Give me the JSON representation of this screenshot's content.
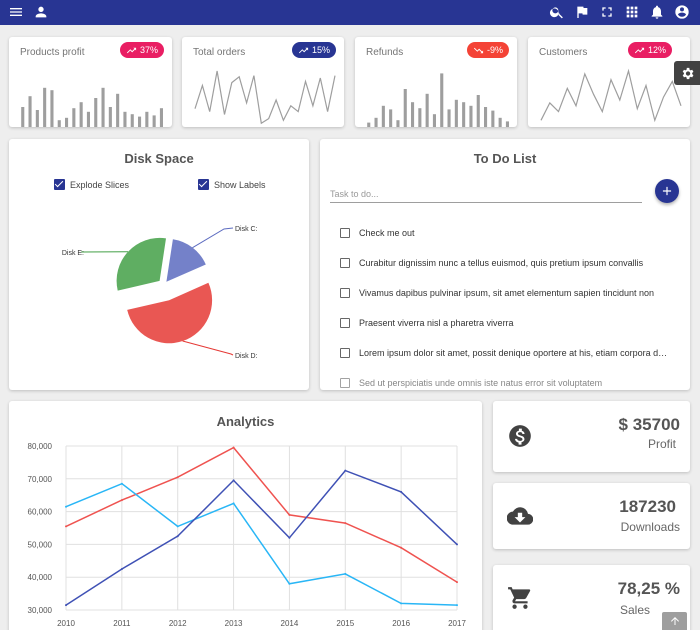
{
  "topbar": {
    "left_icons": [
      "menu-icon",
      "person-icon"
    ],
    "right_icons": [
      "search-icon",
      "flag-icon",
      "fullscreen-icon",
      "apps-icon",
      "bell-icon",
      "account-icon"
    ],
    "color": "#283593"
  },
  "stats": [
    {
      "title": "Products profit",
      "badge": "37%",
      "trend": "up",
      "badge_color": "#e91e63",
      "chart": "bars",
      "values": [
        40,
        58,
        35,
        72,
        68,
        18,
        22,
        38,
        48,
        32,
        55,
        72,
        40,
        62,
        32,
        28,
        24,
        32,
        26,
        38
      ]
    },
    {
      "title": "Total orders",
      "badge": "15%",
      "trend": "up",
      "badge_color": "#283593",
      "chart": "line",
      "values": [
        35,
        75,
        30,
        100,
        25,
        80,
        90,
        45,
        92,
        10,
        18,
        50,
        15,
        40,
        30,
        82,
        40,
        88,
        30,
        92
      ]
    },
    {
      "title": "Refunds",
      "badge": "-9%",
      "trend": "down",
      "badge_color": "#f44336",
      "chart": "bars",
      "values": [
        14,
        22,
        42,
        36,
        18,
        70,
        48,
        38,
        62,
        28,
        96,
        36,
        52,
        48,
        42,
        60,
        40,
        34,
        22,
        16
      ]
    },
    {
      "title": "Customers",
      "badge": "12%",
      "trend": "up",
      "badge_color": "#e91e63",
      "chart": "line",
      "values": [
        15,
        45,
        30,
        70,
        40,
        95,
        60,
        30,
        85,
        50,
        100,
        35,
        75,
        15,
        55,
        82,
        40
      ]
    }
  ],
  "disk": {
    "title": "Disk Space",
    "options": [
      {
        "label": "Explode Slices",
        "checked": true
      },
      {
        "label": "Show Labels",
        "checked": true
      }
    ],
    "chart_data": {
      "type": "pie",
      "slices": [
        {
          "label": "Disk C:",
          "value": 16,
          "color": "#5c6bc0"
        },
        {
          "label": "Disk D:",
          "value": 53,
          "color": "#e53935"
        },
        {
          "label": "Disk E:",
          "value": 31,
          "color": "#43a047"
        }
      ]
    }
  },
  "todo": {
    "title": "To Do List",
    "placeholder": "Task to do...",
    "items": [
      "Check me out",
      "Curabitur dignissim nunc a tellus euismod, quis pretium ipsum convallis",
      "Vivamus dapibus pulvinar ipsum, sit amet elementum sapien tincidunt non",
      "Praesent viverra nisl a pharetra viverra",
      "Lorem ipsum dolor sit amet, possit denique oportere at his, etiam corpora deseruisse te pro",
      "Sed ut perspiciatis unde omnis iste natus error sit voluptatem"
    ]
  },
  "analytics": {
    "title": "Analytics",
    "chart_data": {
      "type": "line",
      "x": [
        2010,
        2011,
        2012,
        2013,
        2014,
        2015,
        2016,
        2017
      ],
      "ylim": [
        30000,
        80000
      ],
      "yticks": [
        "80,000",
        "70,000",
        "60,000",
        "50,000",
        "40,000",
        "30,000"
      ],
      "grid": true,
      "series": [
        {
          "color": "#ef5350",
          "values": [
            55500,
            63500,
            70500,
            79500,
            59000,
            56500,
            49000,
            38500
          ]
        },
        {
          "color": "#29b6f6",
          "values": [
            61500,
            68500,
            55500,
            62500,
            38000,
            41000,
            32000,
            31500
          ]
        },
        {
          "color": "#3f51b5",
          "values": [
            31500,
            42500,
            52500,
            69500,
            52000,
            72500,
            66000,
            50000
          ]
        }
      ]
    }
  },
  "kpis": [
    {
      "icon": "dollar-icon",
      "value": "$ 35700",
      "label": "Profit"
    },
    {
      "icon": "cloud-download-icon",
      "value": "187230",
      "label": "Downloads"
    },
    {
      "icon": "cart-icon",
      "value": "78,25 %",
      "label": "Sales"
    }
  ]
}
